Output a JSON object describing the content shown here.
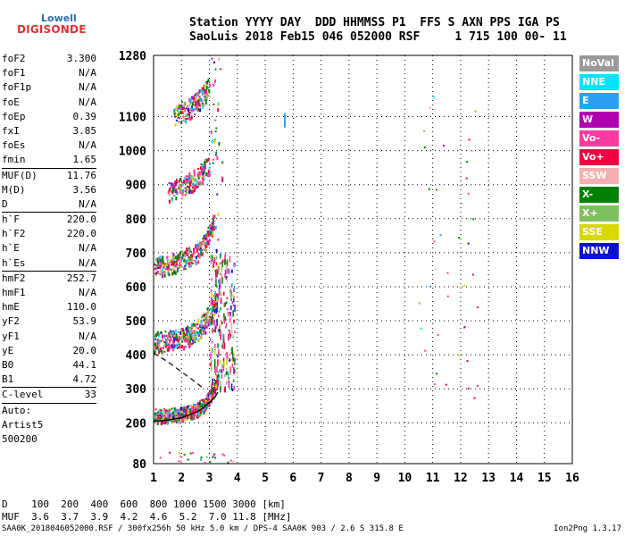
{
  "logo": {
    "line1": "Lowell",
    "line2": "DIGISONDE"
  },
  "header": {
    "line1": "Station YYYY DAY  DDD HHMMSS P1  FFS S AXN PPS IGA PS",
    "line2": "SaoLuis 2018 Feb15 046 052000 RSF     1 715 100 00- 11"
  },
  "params": {
    "group1": [
      {
        "k": "foF2",
        "v": "3.300"
      },
      {
        "k": "foF1",
        "v": "N/A"
      },
      {
        "k": "foF1p",
        "v": "N/A"
      },
      {
        "k": "foE",
        "v": "N/A"
      },
      {
        "k": "foEp",
        "v": "0.39"
      },
      {
        "k": "fxI",
        "v": "3.85"
      },
      {
        "k": "foEs",
        "v": "N/A"
      },
      {
        "k": "fmin",
        "v": "1.65"
      }
    ],
    "group2": [
      {
        "k": "MUF(D)",
        "v": "11.76"
      },
      {
        "k": "M(D)",
        "v": "3.56"
      },
      {
        "k": "D",
        "v": "N/A"
      }
    ],
    "group3": [
      {
        "k": "h`F",
        "v": "220.0"
      },
      {
        "k": "h`F2",
        "v": "220.0"
      },
      {
        "k": "h`E",
        "v": "N/A"
      },
      {
        "k": "h`Es",
        "v": "N/A"
      }
    ],
    "group4": [
      {
        "k": "hmF2",
        "v": "252.7"
      },
      {
        "k": "hmF1",
        "v": "N/A"
      },
      {
        "k": "hmE",
        "v": "110.0"
      },
      {
        "k": "yF2",
        "v": "53.9"
      },
      {
        "k": "yF1",
        "v": "N/A"
      },
      {
        "k": "yE",
        "v": "20.0"
      },
      {
        "k": "B0",
        "v": "44.1"
      },
      {
        "k": "B1",
        "v": "4.72"
      }
    ],
    "group5": [
      {
        "k": "C-level",
        "v": "33"
      }
    ],
    "auto_lines": [
      "Auto:",
      "Artist5",
      "500200"
    ]
  },
  "legend": [
    {
      "label": "NoVal",
      "color": "#9a9a9a"
    },
    {
      "label": "NNE",
      "color": "#00e5ff"
    },
    {
      "label": "E",
      "color": "#2aa0f0"
    },
    {
      "label": "W",
      "color": "#b000b0"
    },
    {
      "label": "Vo-",
      "color": "#ff3aa0"
    },
    {
      "label": "Vo+",
      "color": "#f00040"
    },
    {
      "label": "SSW",
      "color": "#f4b0b0"
    },
    {
      "label": "X-",
      "color": "#008000"
    },
    {
      "label": "X+",
      "color": "#7fbf5f"
    },
    {
      "label": "SSE",
      "color": "#d8d800"
    },
    {
      "label": "NNW",
      "color": "#1010d0"
    }
  ],
  "footer": {
    "line1": "D    100  200  400  600  800 1000 1500 3000 [km]",
    "line2": "MUF  3.6  3.7  3.9  4.2  4.6  5.2  7.0 11.8 [MHz]"
  },
  "bottom": {
    "left": "SAA0K_2018046052000.RSF / 300fx256h 50 kHz 5.0 km / DPS-4 SAA0K 903 / 2.6 S 315.8 E",
    "right": "Ion2Png 1.3.17"
  },
  "chart_data": {
    "type": "scatter",
    "x_range": [
      1,
      16
    ],
    "y_range": [
      80,
      1280
    ],
    "x_ticks": [
      1,
      2,
      3,
      4,
      5,
      6,
      7,
      8,
      9,
      10,
      11,
      12,
      13,
      14,
      15,
      16
    ],
    "y_ticks": [
      80,
      200,
      300,
      400,
      500,
      600,
      700,
      800,
      900,
      1000,
      1100,
      1280
    ],
    "grid": true,
    "traces": [
      {
        "name": "F2 trace",
        "points": [
          [
            1.0,
            222
          ],
          [
            1.5,
            224
          ],
          [
            2.0,
            228
          ],
          [
            2.5,
            240
          ],
          [
            2.8,
            255
          ],
          [
            3.0,
            275
          ],
          [
            3.2,
            305
          ],
          [
            3.3,
            345
          ]
        ]
      },
      {
        "name": "2nd hop",
        "points": [
          [
            1.0,
            440
          ],
          [
            1.5,
            442
          ],
          [
            2.0,
            450
          ],
          [
            2.5,
            470
          ],
          [
            2.8,
            495
          ],
          [
            3.0,
            520
          ],
          [
            3.2,
            560
          ]
        ]
      },
      {
        "name": "3rd hop",
        "points": [
          [
            1.0,
            660
          ],
          [
            1.5,
            665
          ],
          [
            2.0,
            680
          ],
          [
            2.5,
            700
          ],
          [
            2.8,
            730
          ],
          [
            3.0,
            760
          ],
          [
            3.2,
            800
          ]
        ]
      },
      {
        "name": "4th hop",
        "points": [
          [
            1.5,
            880
          ],
          [
            2.0,
            895
          ],
          [
            2.5,
            920
          ],
          [
            3.0,
            960
          ]
        ]
      },
      {
        "name": "5th hop",
        "points": [
          [
            1.7,
            1110
          ],
          [
            2.2,
            1120
          ],
          [
            2.6,
            1150
          ],
          [
            3.0,
            1190
          ]
        ]
      }
    ],
    "profile": [
      [
        1.0,
        205
      ],
      [
        1.5,
        208
      ],
      [
        2.0,
        215
      ],
      [
        2.5,
        230
      ],
      [
        2.8,
        245
      ],
      [
        3.0,
        260
      ],
      [
        3.2,
        275
      ],
      [
        3.3,
        290
      ]
    ],
    "profile_dashed": [
      [
        1.0,
        405
      ],
      [
        1.5,
        380
      ],
      [
        2.0,
        350
      ],
      [
        2.5,
        320
      ],
      [
        2.8,
        300
      ]
    ]
  }
}
